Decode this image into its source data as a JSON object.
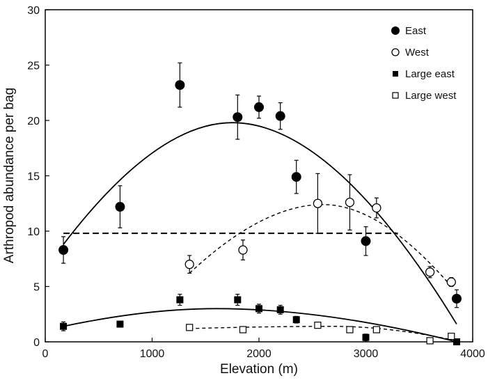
{
  "chart_data": {
    "type": "scatter",
    "xlabel": "Elevation (m)",
    "ylabel": "Arthropod abundance per bag",
    "xlim": [
      0,
      4000
    ],
    "ylim": [
      0,
      30
    ],
    "xticks": [
      0,
      1000,
      2000,
      3000,
      4000
    ],
    "yticks": [
      0,
      5,
      10,
      15,
      20,
      25,
      30
    ],
    "legend_position": "top-right",
    "series": [
      {
        "name": "East",
        "marker": "filled-circle",
        "points": [
          {
            "x": 170,
            "y": 8.3,
            "err": 1.2
          },
          {
            "x": 700,
            "y": 12.2,
            "err": 1.9
          },
          {
            "x": 1260,
            "y": 23.2,
            "err": 2.0
          },
          {
            "x": 1800,
            "y": 20.3,
            "err": 2.0
          },
          {
            "x": 2000,
            "y": 21.2,
            "err": 1.0
          },
          {
            "x": 2200,
            "y": 20.4,
            "err": 1.2
          },
          {
            "x": 2350,
            "y": 14.9,
            "err": 1.5
          },
          {
            "x": 3000,
            "y": 9.1,
            "err": 1.3
          },
          {
            "x": 3850,
            "y": 3.9,
            "err": 0.8
          }
        ],
        "fit": {
          "style": "solid",
          "x": [
            170,
            3850
          ],
          "y_at_x0": 8.8,
          "peak": [
            1750,
            19.8
          ],
          "y_at_x1": 1.6
        }
      },
      {
        "name": "West",
        "marker": "open-circle",
        "points": [
          {
            "x": 1350,
            "y": 7.0,
            "err": 0.8
          },
          {
            "x": 1850,
            "y": 8.3,
            "err": 0.9
          },
          {
            "x": 2550,
            "y": 12.5,
            "err": 2.7
          },
          {
            "x": 2850,
            "y": 12.6,
            "err": 2.5
          },
          {
            "x": 3100,
            "y": 12.1,
            "err": 0.9
          },
          {
            "x": 3600,
            "y": 6.3,
            "err": 0.5
          },
          {
            "x": 3800,
            "y": 5.4,
            "err": 0.4
          }
        ],
        "fit": {
          "style": "dashed",
          "x": [
            1350,
            3800
          ],
          "y_at_x0": 6.2,
          "peak": [
            2600,
            12.4
          ],
          "y_at_x1": 5.0
        }
      },
      {
        "name": "Large east",
        "marker": "filled-square",
        "points": [
          {
            "x": 170,
            "y": 1.4,
            "err": 0.4
          },
          {
            "x": 700,
            "y": 1.6,
            "err": 0.2
          },
          {
            "x": 1260,
            "y": 3.8,
            "err": 0.5
          },
          {
            "x": 1800,
            "y": 3.8,
            "err": 0.5
          },
          {
            "x": 2000,
            "y": 3.0,
            "err": 0.4
          },
          {
            "x": 2200,
            "y": 2.9,
            "err": 0.4
          },
          {
            "x": 2350,
            "y": 2.0,
            "err": 0.3
          },
          {
            "x": 3000,
            "y": 0.4,
            "err": 0.3
          },
          {
            "x": 3850,
            "y": 0.0,
            "err": 0.1
          }
        ],
        "fit": {
          "style": "solid",
          "x": [
            170,
            3850
          ],
          "y_at_x0": 1.4,
          "peak": [
            1600,
            3.0
          ],
          "y_at_x1": 0.0
        }
      },
      {
        "name": "Large west",
        "marker": "open-square",
        "points": [
          {
            "x": 1350,
            "y": 1.3,
            "err": 0.1
          },
          {
            "x": 1850,
            "y": 1.1,
            "err": 0.1
          },
          {
            "x": 2550,
            "y": 1.5,
            "err": 0.1
          },
          {
            "x": 2850,
            "y": 1.1,
            "err": 0.1
          },
          {
            "x": 3100,
            "y": 1.1,
            "err": 0.1
          },
          {
            "x": 3600,
            "y": 0.1,
            "err": 0.1
          },
          {
            "x": 3800,
            "y": 0.5,
            "err": 0.1
          }
        ],
        "fit": {
          "style": "dashed",
          "x": [
            1350,
            3800
          ],
          "y_at_x0": 1.2,
          "peak": [
            2700,
            1.4
          ],
          "y_at_x1": 0.2
        }
      }
    ],
    "reference_line": {
      "style": "dashed",
      "x": [
        170,
        3300
      ],
      "y": 9.8
    }
  }
}
